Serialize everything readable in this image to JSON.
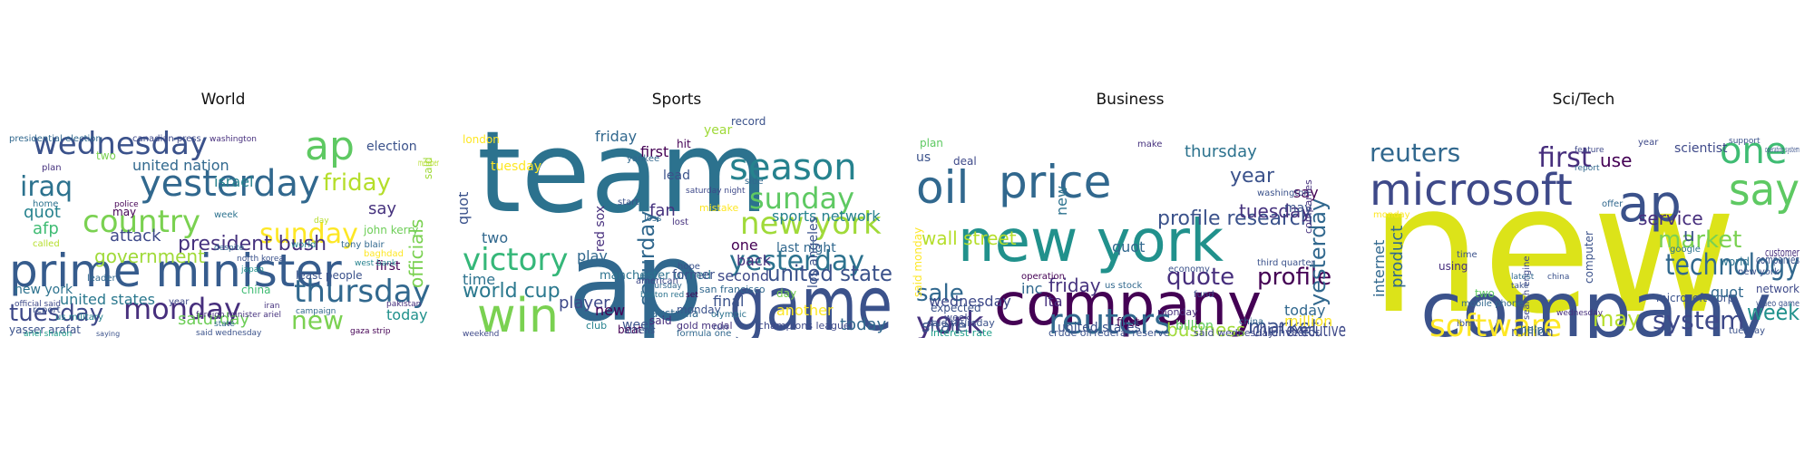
{
  "panels": [
    {
      "title": "World",
      "words": [
        {
          "text": "prime minister",
          "color": "#365c8d"
        },
        {
          "text": "wednesday",
          "color": "#3b528b"
        },
        {
          "text": "yesterday",
          "color": "#31688e"
        },
        {
          "text": "monday",
          "color": "#472f7d"
        },
        {
          "text": "country",
          "color": "#7ad151"
        },
        {
          "text": "iraq",
          "color": "#2c728e"
        },
        {
          "text": "ap",
          "color": "#5ec962"
        },
        {
          "text": "sunday",
          "color": "#fde725"
        },
        {
          "text": "thursday",
          "color": "#31688e"
        },
        {
          "text": "tuesday",
          "color": "#3e4989"
        },
        {
          "text": "president bush",
          "color": "#46327e"
        },
        {
          "text": "friday",
          "color": "#b5de2b"
        },
        {
          "text": "new",
          "color": "#7ad151"
        },
        {
          "text": "government",
          "color": "#a0da39"
        },
        {
          "text": "united nation",
          "color": "#31688e"
        },
        {
          "text": "united states",
          "color": "#2a788e"
        },
        {
          "text": "saturday",
          "color": "#6ece58"
        },
        {
          "text": "officials",
          "color": "#7ad151"
        },
        {
          "text": "israel",
          "color": "#26828e"
        },
        {
          "text": "afp",
          "color": "#3fbc73"
        },
        {
          "text": "quot",
          "color": "#26828e"
        },
        {
          "text": "attack",
          "color": "#3e4989"
        },
        {
          "text": "say",
          "color": "#46327e"
        },
        {
          "text": "election",
          "color": "#3b528b"
        },
        {
          "text": "today",
          "color": "#21918c"
        },
        {
          "text": "new york",
          "color": "#2c728e"
        },
        {
          "text": "john kerry",
          "color": "#6ece58"
        },
        {
          "text": "said",
          "color": "#a0da39"
        },
        {
          "text": "least people",
          "color": "#3b528b"
        },
        {
          "text": "first",
          "color": "#440154"
        },
        {
          "text": "yasser arafat",
          "color": "#3b528b"
        },
        {
          "text": "presidential election",
          "color": "#31688e"
        },
        {
          "text": "canadian press",
          "color": "#3e4989"
        },
        {
          "text": "washington",
          "color": "#472f7d"
        },
        {
          "text": "china",
          "color": "#3fbc73"
        },
        {
          "text": "member",
          "color": "#b5de2b"
        },
        {
          "text": "tony blair",
          "color": "#31688e"
        },
        {
          "text": "plan",
          "color": "#46327e"
        },
        {
          "text": "home",
          "color": "#2c728e"
        },
        {
          "text": "police",
          "color": "#440154"
        },
        {
          "text": "baghdad",
          "color": "#fde725"
        },
        {
          "text": "north korea",
          "color": "#3b528b"
        },
        {
          "text": "japan",
          "color": "#21918c"
        },
        {
          "text": "gaza strip",
          "color": "#440154"
        },
        {
          "text": "ariel sharon",
          "color": "#1f9e89"
        },
        {
          "text": "said wednesday",
          "color": "#3b528b"
        },
        {
          "text": "campaign",
          "color": "#31688e"
        },
        {
          "text": "west bank",
          "color": "#26828e"
        },
        {
          "text": "iran",
          "color": "#46327e"
        },
        {
          "text": "year",
          "color": "#3e4989"
        },
        {
          "text": "week",
          "color": "#2c728e"
        },
        {
          "text": "state",
          "color": "#31688e"
        },
        {
          "text": "report",
          "color": "#3b528b"
        },
        {
          "text": "us military",
          "color": "#26828e"
        },
        {
          "text": "foreign minister ariel",
          "color": "#46327e"
        },
        {
          "text": "saying",
          "color": "#3b528b"
        },
        {
          "text": "two",
          "color": "#7ad151"
        },
        {
          "text": "leader",
          "color": "#31688e"
        },
        {
          "text": "called",
          "color": "#b5de2b"
        },
        {
          "text": "official said",
          "color": "#3e4989"
        },
        {
          "text": "pakistan",
          "color": "#472f7d"
        },
        {
          "text": "may",
          "color": "#440154"
        },
        {
          "text": "day",
          "color": "#b5de2b"
        },
        {
          "text": "world",
          "color": "#26828e"
        },
        {
          "text": "despite",
          "color": "#31688e"
        }
      ]
    },
    {
      "title": "Sports",
      "words": [
        {
          "text": "team",
          "color": "#2c728e"
        },
        {
          "text": "ap",
          "color": "#31688e"
        },
        {
          "text": "game",
          "color": "#3b528b"
        },
        {
          "text": "win",
          "color": "#7ad151"
        },
        {
          "text": "season",
          "color": "#26828e"
        },
        {
          "text": "new york",
          "color": "#a0da39"
        },
        {
          "text": "yesterday",
          "color": "#2c728e"
        },
        {
          "text": "sunday",
          "color": "#5ec962"
        },
        {
          "text": "victory",
          "color": "#35b779"
        },
        {
          "text": "saturday",
          "color": "#31688e"
        },
        {
          "text": "one",
          "color": "#440154"
        },
        {
          "text": "sports network",
          "color": "#26828e"
        },
        {
          "text": "last night",
          "color": "#31688e"
        },
        {
          "text": "united state",
          "color": "#3b528b"
        },
        {
          "text": "red sox",
          "color": "#472f7d"
        },
        {
          "text": "world cup",
          "color": "#2a788e"
        },
        {
          "text": "player",
          "color": "#3e4989"
        },
        {
          "text": "play",
          "color": "#31688e"
        },
        {
          "text": "quot",
          "color": "#3b528b"
        },
        {
          "text": "friday",
          "color": "#31688e"
        },
        {
          "text": "tuesday",
          "color": "#fde725"
        },
        {
          "text": "lead",
          "color": "#3b528b"
        },
        {
          "text": "first",
          "color": "#440154"
        },
        {
          "text": "back",
          "color": "#472f7d"
        },
        {
          "text": "second",
          "color": "#3e4989"
        },
        {
          "text": "time",
          "color": "#2c728e"
        },
        {
          "text": "two",
          "color": "#31688e"
        },
        {
          "text": "new",
          "color": "#440154"
        },
        {
          "text": "week",
          "color": "#3b528b"
        },
        {
          "text": "final",
          "color": "#3b528b"
        },
        {
          "text": "today",
          "color": "#31688e"
        },
        {
          "text": "another",
          "color": "#fde725"
        },
        {
          "text": "monday",
          "color": "#3b528b"
        },
        {
          "text": "australia",
          "color": "#31688e"
        },
        {
          "text": "champions league",
          "color": "#3e4989"
        },
        {
          "text": "gold medal",
          "color": "#46327e"
        },
        {
          "text": "san francisco",
          "color": "#31688e"
        },
        {
          "text": "los angeles",
          "color": "#3b528b"
        },
        {
          "text": "manchester united",
          "color": "#2c728e"
        },
        {
          "text": "said",
          "color": "#472f7d"
        },
        {
          "text": "beat",
          "color": "#440154"
        },
        {
          "text": "fan",
          "color": "#46327e"
        },
        {
          "text": "year",
          "color": "#a0da39"
        },
        {
          "text": "hit",
          "color": "#440154"
        },
        {
          "text": "day",
          "color": "#7ad151"
        },
        {
          "text": "club",
          "color": "#26828e"
        },
        {
          "text": "formula one",
          "color": "#31688e"
        },
        {
          "text": "athens",
          "color": "#3b528b"
        },
        {
          "text": "lost",
          "color": "#46327e"
        },
        {
          "text": "run",
          "color": "#3e4989"
        },
        {
          "text": "record",
          "color": "#3b528b"
        },
        {
          "text": "london",
          "color": "#fde725"
        },
        {
          "text": "former",
          "color": "#3b528b"
        },
        {
          "text": "american",
          "color": "#3e4989"
        },
        {
          "text": "thursday",
          "color": "#31688e"
        },
        {
          "text": "yankee",
          "color": "#31688e"
        },
        {
          "text": "boston red",
          "color": "#2c728e"
        },
        {
          "text": "set",
          "color": "#440154"
        },
        {
          "text": "weekend",
          "color": "#3e4989"
        },
        {
          "text": "mistake",
          "color": "#fde725"
        },
        {
          "text": "saturday night",
          "color": "#3e4989"
        },
        {
          "text": "start",
          "color": "#3b528b"
        },
        {
          "text": "loss",
          "color": "#31688e"
        },
        {
          "text": "hope",
          "color": "#3b528b"
        },
        {
          "text": "olympic",
          "color": "#2c728e"
        },
        {
          "text": "side",
          "color": "#31688e"
        }
      ]
    },
    {
      "title": "Business",
      "words": [
        {
          "text": "new york",
          "color": "#21918c"
        },
        {
          "text": "company",
          "color": "#440154"
        },
        {
          "text": "price",
          "color": "#31688e"
        },
        {
          "text": "oil",
          "color": "#31688e"
        },
        {
          "text": "reuters",
          "color": "#31688e"
        },
        {
          "text": "york",
          "color": "#46327e"
        },
        {
          "text": "profile research",
          "color": "#3b528b"
        },
        {
          "text": "quote",
          "color": "#472f7d"
        },
        {
          "text": "profile",
          "color": "#440154"
        },
        {
          "text": "yesterday",
          "color": "#31688e"
        },
        {
          "text": "thursday",
          "color": "#2c728e"
        },
        {
          "text": "wall street",
          "color": "#b5de2b"
        },
        {
          "text": "market",
          "color": "#3b528b"
        },
        {
          "text": "chief executive",
          "color": "#3e4989"
        },
        {
          "text": "business",
          "color": "#a0da39"
        },
        {
          "text": "sale",
          "color": "#31688e"
        },
        {
          "text": "share",
          "color": "#3b528b"
        },
        {
          "text": "new",
          "color": "#2c728e"
        },
        {
          "text": "us",
          "color": "#3b528b"
        },
        {
          "text": "year",
          "color": "#3b528b"
        },
        {
          "text": "tuesday",
          "color": "#46327e"
        },
        {
          "text": "friday",
          "color": "#46327e"
        },
        {
          "text": "quot",
          "color": "#31688e"
        },
        {
          "text": "wednesday",
          "color": "#3e4989"
        },
        {
          "text": "inc",
          "color": "#31688e"
        },
        {
          "text": "lta",
          "color": "#472f7d"
        },
        {
          "text": "say",
          "color": "#440154"
        },
        {
          "text": "today",
          "color": "#31688e"
        },
        {
          "text": "million",
          "color": "#fde725"
        },
        {
          "text": "united states",
          "color": "#3b528b"
        },
        {
          "text": "interest rate",
          "color": "#1f9e89"
        },
        {
          "text": "federal reserve",
          "color": "#3b528b"
        },
        {
          "text": "crude oil",
          "color": "#3b528b"
        },
        {
          "text": "said monday",
          "color": "#fde725"
        },
        {
          "text": "said thursday",
          "color": "#3b528b"
        },
        {
          "text": "companies",
          "color": "#46327e"
        },
        {
          "text": "plan",
          "color": "#5ec962"
        },
        {
          "text": "deal",
          "color": "#3e4989"
        },
        {
          "text": "may",
          "color": "#3b528b"
        },
        {
          "text": "first",
          "color": "#440154"
        },
        {
          "text": "billion",
          "color": "#5ec962"
        },
        {
          "text": "expected",
          "color": "#3b528b"
        },
        {
          "text": "operation",
          "color": "#440154"
        },
        {
          "text": "week",
          "color": "#3e4989"
        },
        {
          "text": "monday",
          "color": "#472f7d"
        },
        {
          "text": "investor",
          "color": "#3e4989"
        },
        {
          "text": "third quarter",
          "color": "#3b528b"
        },
        {
          "text": "us stock",
          "color": "#31688e"
        },
        {
          "text": "economy",
          "color": "#3b528b"
        },
        {
          "text": "fund",
          "color": "#3e4989"
        },
        {
          "text": "make",
          "color": "#46327e"
        },
        {
          "text": "said wednesday",
          "color": "#3e4989"
        },
        {
          "text": "washington",
          "color": "#3b528b"
        },
        {
          "text": "china",
          "color": "#31688e"
        }
      ]
    },
    {
      "title": "Sci/Tech",
      "words": [
        {
          "text": "new",
          "color": "#dce319"
        },
        {
          "text": "company",
          "color": "#3b528b"
        },
        {
          "text": "microsoft",
          "color": "#3e4989"
        },
        {
          "text": "say",
          "color": "#5ec962"
        },
        {
          "text": "one",
          "color": "#3fbc73"
        },
        {
          "text": "ap",
          "color": "#3b528b"
        },
        {
          "text": "technology",
          "color": "#31688e"
        },
        {
          "text": "reuters",
          "color": "#31688e"
        },
        {
          "text": "first",
          "color": "#472f7d"
        },
        {
          "text": "software",
          "color": "#fde725"
        },
        {
          "text": "system",
          "color": "#3e4989"
        },
        {
          "text": "market",
          "color": "#7ad151"
        },
        {
          "text": "service",
          "color": "#472f7d"
        },
        {
          "text": "u",
          "color": "#3b528b"
        },
        {
          "text": "week",
          "color": "#21918c"
        },
        {
          "text": "may",
          "color": "#b5de2b"
        },
        {
          "text": "product",
          "color": "#31688e"
        },
        {
          "text": "internet",
          "color": "#31688e"
        },
        {
          "text": "microsoft corp",
          "color": "#3b528b"
        },
        {
          "text": "quot",
          "color": "#31688e"
        },
        {
          "text": "use",
          "color": "#440154"
        },
        {
          "text": "scientist",
          "color": "#3e4989"
        },
        {
          "text": "computer",
          "color": "#3b528b"
        },
        {
          "text": "google",
          "color": "#2c728e"
        },
        {
          "text": "companies",
          "color": "#3b528b"
        },
        {
          "text": "customer",
          "color": "#472f7d"
        },
        {
          "text": "network",
          "color": "#3e4989"
        },
        {
          "text": "million",
          "color": "#3b528b"
        },
        {
          "text": "help",
          "color": "#31688e"
        },
        {
          "text": "using",
          "color": "#472f7d"
        },
        {
          "text": "two",
          "color": "#5ec962"
        },
        {
          "text": "video game",
          "color": "#3b528b"
        },
        {
          "text": "mobile phone",
          "color": "#31688e"
        },
        {
          "text": "search engine",
          "color": "#3e4989"
        },
        {
          "text": "operating system",
          "color": "#3b528b"
        },
        {
          "text": "world",
          "color": "#2c728e"
        },
        {
          "text": "ibm",
          "color": "#3b528b"
        },
        {
          "text": "year",
          "color": "#3e4989"
        },
        {
          "text": "time",
          "color": "#3b528b"
        },
        {
          "text": "offer",
          "color": "#31688e"
        },
        {
          "text": "tuesday",
          "color": "#3b528b"
        },
        {
          "text": "wednesday",
          "color": "#472f7d"
        },
        {
          "text": "new york",
          "color": "#3b528b"
        },
        {
          "text": "latest",
          "color": "#31688e"
        },
        {
          "text": "take",
          "color": "#3b528b"
        },
        {
          "text": "feature",
          "color": "#3e4989"
        },
        {
          "text": "support",
          "color": "#3b528b"
        },
        {
          "text": "report",
          "color": "#31688e"
        },
        {
          "text": "china",
          "color": "#3b528b"
        },
        {
          "text": "monday",
          "color": "#fde725"
        }
      ]
    }
  ]
}
